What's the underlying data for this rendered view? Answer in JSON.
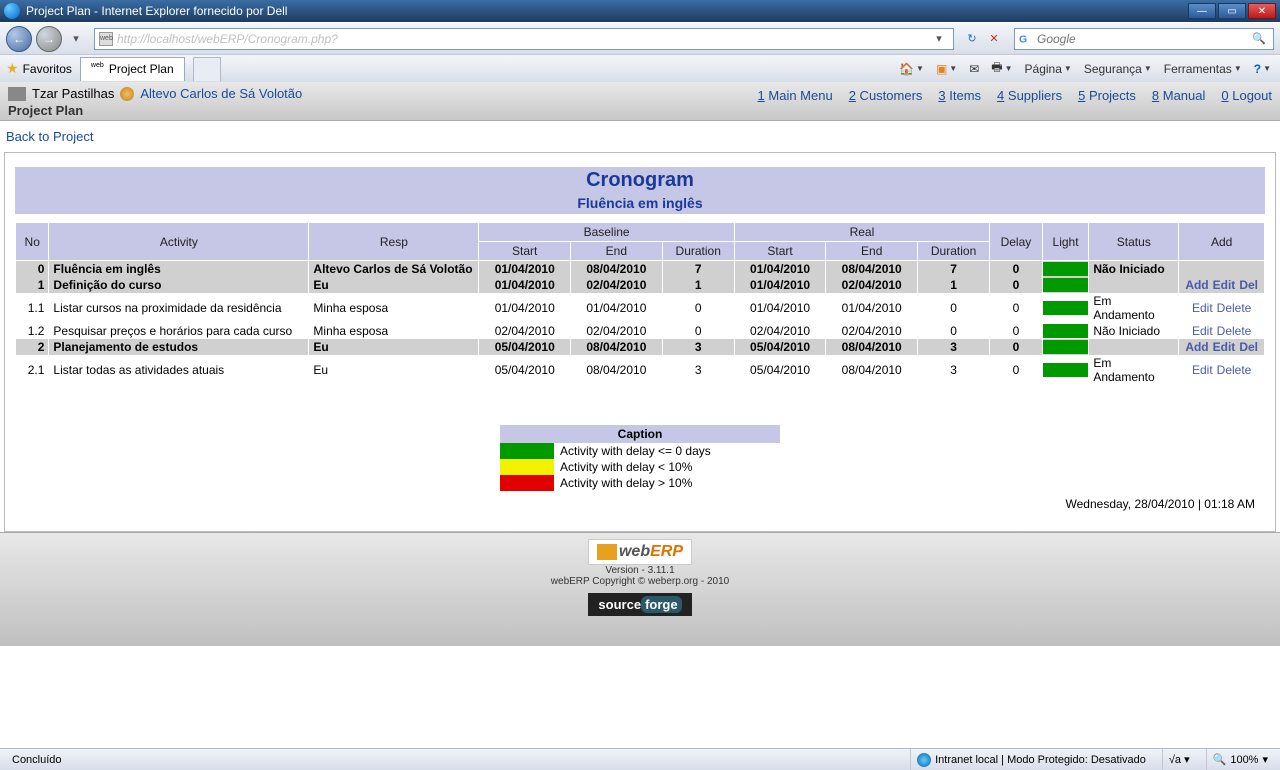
{
  "window": {
    "title": "Project Plan - Internet Explorer fornecido por Dell"
  },
  "nav": {
    "url": "http://localhost/webERP/Cronogram.php?"
  },
  "search": {
    "placeholder": "Google"
  },
  "fav": {
    "label": "Favoritos"
  },
  "tab": {
    "label": "Project Plan"
  },
  "tools": {
    "pagina": "Página",
    "seguranca": "Segurança",
    "ferramentas": "Ferramentas"
  },
  "crumb": {
    "company": "Tzar Pastilhas",
    "user": "Altevo Carlos de Sá Volotão",
    "sub": "Project Plan"
  },
  "menu": [
    {
      "key": "1",
      "label": "Main Menu"
    },
    {
      "key": "2",
      "label": "Customers"
    },
    {
      "key": "3",
      "label": "Items"
    },
    {
      "key": "4",
      "label": "Suppliers"
    },
    {
      "key": "5",
      "label": "Projects"
    },
    {
      "key": "8",
      "label": "Manual"
    },
    {
      "key": "0",
      "label": "Logout"
    }
  ],
  "back": "Back to Project",
  "cron": {
    "title": "Cronogram",
    "subtitle": "Fluência em inglês",
    "headers": {
      "no": "No",
      "activity": "Activity",
      "resp": "Resp",
      "baseline": "Baseline",
      "real": "Real",
      "start": "Start",
      "end": "End",
      "duration": "Duration",
      "delay": "Delay",
      "light": "Light",
      "status": "Status",
      "add": "Add"
    },
    "actions": {
      "add": "Add",
      "edit": "Edit",
      "del": "Del",
      "delete": "Delete"
    },
    "light_color": "#009a00",
    "rows": [
      {
        "no": "0",
        "activity": "Fluência em inglês",
        "resp": "Altevo Carlos de Sá Volotão",
        "bs": "01/04/2010",
        "be": "08/04/2010",
        "bd": "7",
        "rs": "01/04/2010",
        "re": "08/04/2010",
        "rd": "7",
        "delay": "0",
        "status": "Não Iniciado",
        "bold": true,
        "actions": []
      },
      {
        "no": "1",
        "activity": "Definição do curso",
        "resp": "Eu",
        "bs": "01/04/2010",
        "be": "02/04/2010",
        "bd": "1",
        "rs": "01/04/2010",
        "re": "02/04/2010",
        "rd": "1",
        "delay": "0",
        "status": "",
        "bold": true,
        "actions": [
          "add",
          "edit",
          "del"
        ]
      },
      {
        "no": "1.1",
        "activity": "Listar cursos na proximidade da residência",
        "resp": "Minha esposa",
        "bs": "01/04/2010",
        "be": "01/04/2010",
        "bd": "0",
        "rs": "01/04/2010",
        "re": "01/04/2010",
        "rd": "0",
        "delay": "0",
        "status": "Em Andamento",
        "bold": false,
        "actions": [
          "edit",
          "delete"
        ]
      },
      {
        "no": "1.2",
        "activity": "Pesquisar preços e horários para cada curso",
        "resp": "Minha esposa",
        "bs": "02/04/2010",
        "be": "02/04/2010",
        "bd": "0",
        "rs": "02/04/2010",
        "re": "02/04/2010",
        "rd": "0",
        "delay": "0",
        "status": "Não Iniciado",
        "bold": false,
        "actions": [
          "edit",
          "delete"
        ]
      },
      {
        "no": "2",
        "activity": "Planejamento de estudos",
        "resp": "Eu",
        "bs": "05/04/2010",
        "be": "08/04/2010",
        "bd": "3",
        "rs": "05/04/2010",
        "re": "08/04/2010",
        "rd": "3",
        "delay": "0",
        "status": "",
        "bold": true,
        "actions": [
          "add",
          "edit",
          "del"
        ]
      },
      {
        "no": "2.1",
        "activity": "Listar todas as atividades atuais",
        "resp": "Eu",
        "bs": "05/04/2010",
        "be": "08/04/2010",
        "bd": "3",
        "rs": "05/04/2010",
        "re": "08/04/2010",
        "rd": "3",
        "delay": "0",
        "status": "Em Andamento",
        "bold": false,
        "actions": [
          "edit",
          "delete"
        ]
      }
    ]
  },
  "caption": {
    "title": "Caption",
    "rows": [
      {
        "color": "#009a00",
        "text": "Activity with delay <= 0 days"
      },
      {
        "color": "#f2f200",
        "text": "Activity with delay < 10%"
      },
      {
        "color": "#e00000",
        "text": "Activity with delay > 10%"
      }
    ]
  },
  "stamp": "Wednesday, 28/04/2010 | 01:18 AM",
  "footer": {
    "version": "Version - 3.11.1",
    "copyright": "webERP Copyright © weberp.org - 2010"
  },
  "status": {
    "left": "Concluído",
    "mid": "Intranet local | Modo Protegido: Desativado",
    "zoom": "100%"
  }
}
